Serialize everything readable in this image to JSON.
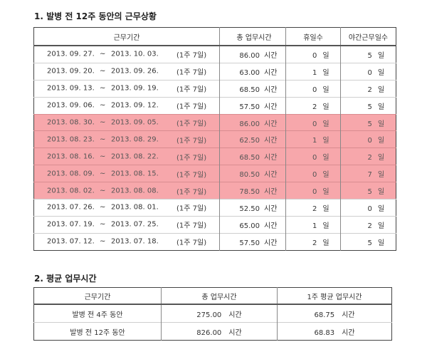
{
  "section1": {
    "title": "1. 발병 전 12주 동안의 근무상황",
    "headers": [
      "근무기간",
      "총 업무시간",
      "휴일수",
      "야간근무일수"
    ],
    "tilde": "~",
    "hours_unit": "시간",
    "day_unit": "일",
    "rows": [
      {
        "start": "2013. 09. 27.",
        "end": "2013. 10. 03.",
        "week": "(1주 7일)",
        "hours": "86.00",
        "days_off": "0",
        "night_days": "5",
        "highlight": false
      },
      {
        "start": "2013. 09. 20.",
        "end": "2013. 09. 26.",
        "week": "(1주 7일)",
        "hours": "63.00",
        "days_off": "1",
        "night_days": "0",
        "highlight": false
      },
      {
        "start": "2013. 09. 13.",
        "end": "2013. 09. 19.",
        "week": "(1주 7일)",
        "hours": "68.50",
        "days_off": "0",
        "night_days": "2",
        "highlight": false
      },
      {
        "start": "2013. 09. 06.",
        "end": "2013. 09. 12.",
        "week": "(1주 7일)",
        "hours": "57.50",
        "days_off": "2",
        "night_days": "5",
        "highlight": false
      },
      {
        "start": "2013. 08. 30.",
        "end": "2013. 09. 05.",
        "week": "(1주 7일)",
        "hours": "86.00",
        "days_off": "0",
        "night_days": "5",
        "highlight": true
      },
      {
        "start": "2013. 08. 23.",
        "end": "2013. 08. 29.",
        "week": "(1주 7일)",
        "hours": "62.50",
        "days_off": "1",
        "night_days": "0",
        "highlight": true
      },
      {
        "start": "2013. 08. 16.",
        "end": "2013. 08. 22.",
        "week": "(1주 7일)",
        "hours": "68.50",
        "days_off": "0",
        "night_days": "2",
        "highlight": true
      },
      {
        "start": "2013. 08. 09.",
        "end": "2013. 08. 15.",
        "week": "(1주 7일)",
        "hours": "80.50",
        "days_off": "0",
        "night_days": "7",
        "highlight": true
      },
      {
        "start": "2013. 08. 02.",
        "end": "2013. 08. 08.",
        "week": "(1주 7일)",
        "hours": "78.50",
        "days_off": "0",
        "night_days": "5",
        "highlight": true
      },
      {
        "start": "2013. 07. 26.",
        "end": "2013. 08. 01.",
        "week": "(1주 7일)",
        "hours": "52.50",
        "days_off": "2",
        "night_days": "0",
        "highlight": false
      },
      {
        "start": "2013. 07. 19.",
        "end": "2013. 07. 25.",
        "week": "(1주 7일)",
        "hours": "65.00",
        "days_off": "1",
        "night_days": "2",
        "highlight": false
      },
      {
        "start": "2013. 07. 12.",
        "end": "2013. 07. 18.",
        "week": "(1주 7일)",
        "hours": "57.50",
        "days_off": "2",
        "night_days": "5",
        "highlight": false
      }
    ]
  },
  "section2": {
    "title": "2. 평균 업무시간",
    "headers": [
      "근무기간",
      "총 업무시간",
      "1주 평균 업무시간"
    ],
    "hours_unit": "시간",
    "rows": [
      {
        "period": "발병 전 4주 동안",
        "total": "275.00",
        "weekly_avg": "68.75"
      },
      {
        "period": "발병 전 12주 동안",
        "total": "826.00",
        "weekly_avg": "68.83"
      }
    ]
  },
  "colors": {
    "highlight": "#f7a7ab"
  }
}
